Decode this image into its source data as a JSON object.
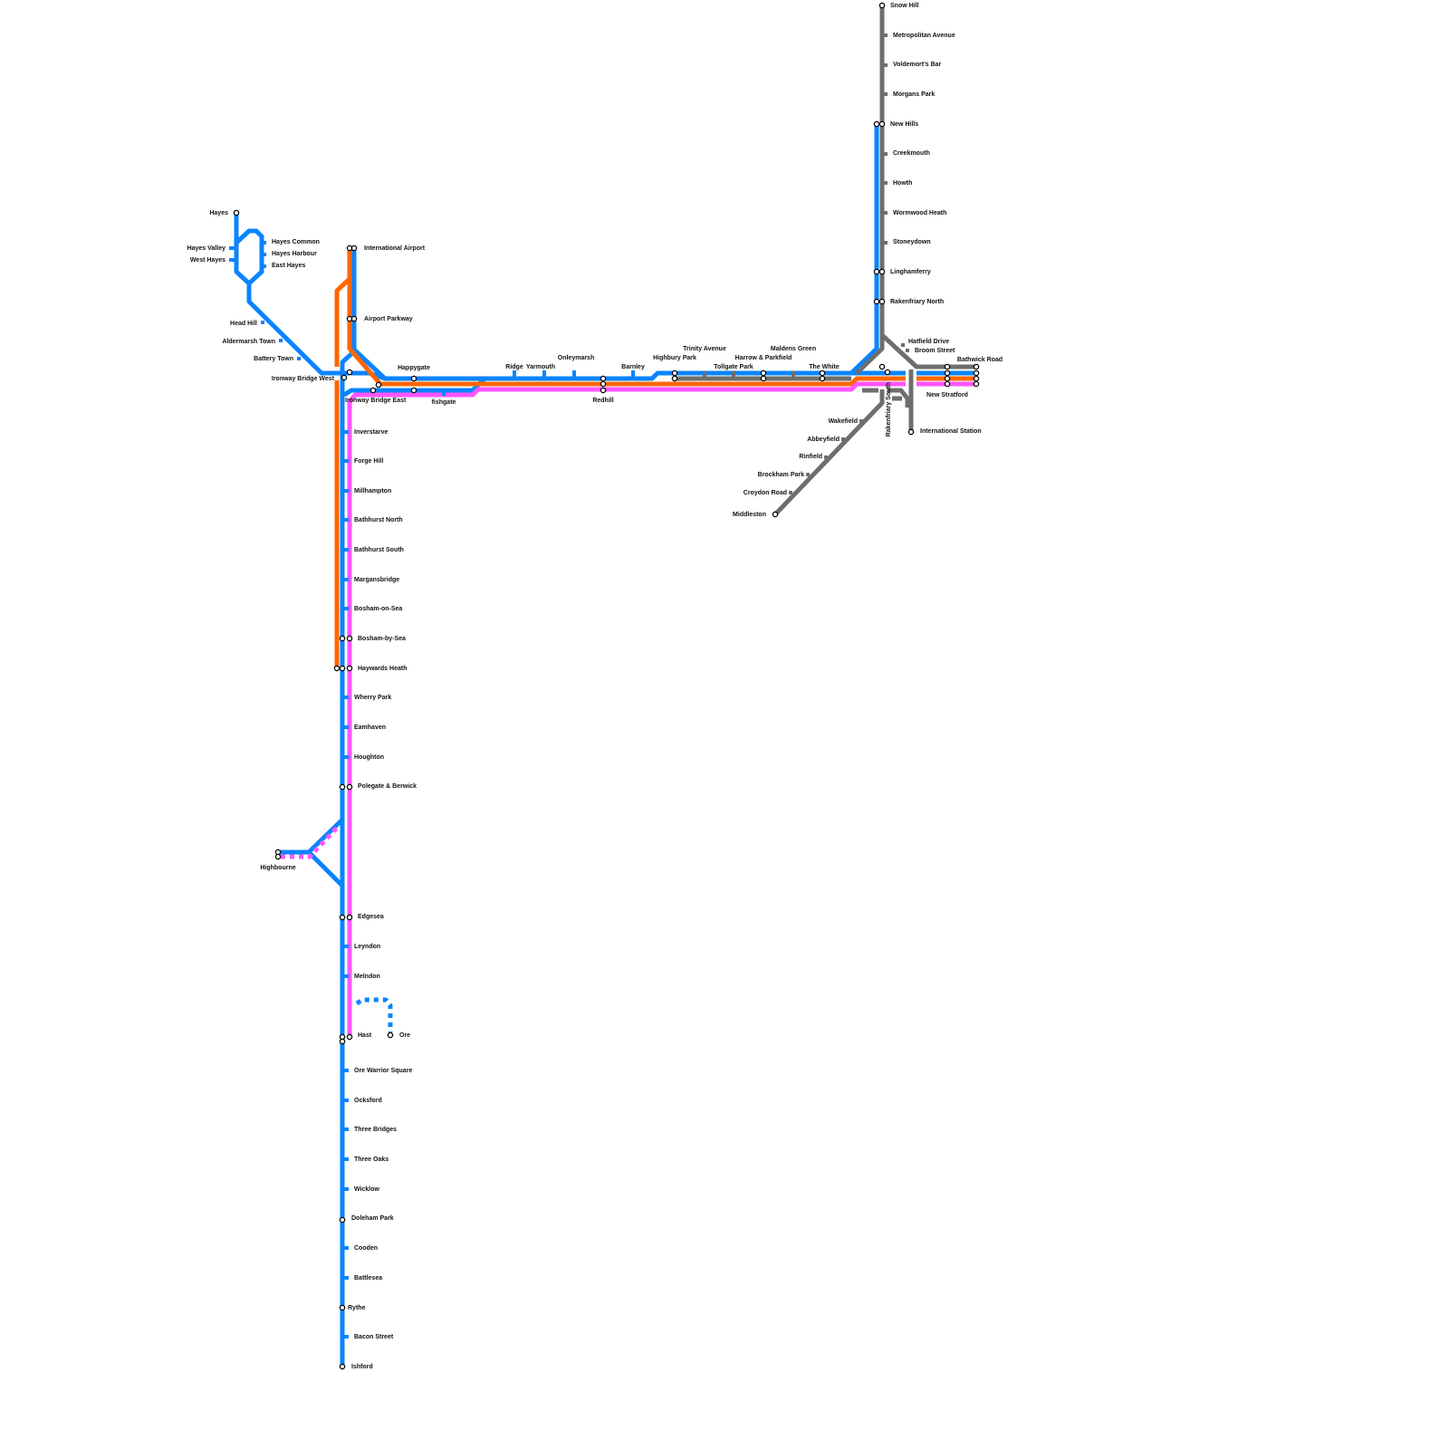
{
  "line_colors": {
    "blue": "#0a84ff",
    "orange": "#ff6600",
    "magenta": "#ff55ff",
    "grey": "#6e6e6e"
  },
  "stations": [
    "Hayes",
    "Hayes Common",
    "Hayes Harbour",
    "East Hayes",
    "Hayes Valley",
    "West Hayes",
    "Head Hill",
    "Aldermarsh Town",
    "Battery Town",
    "International Airport",
    "Airport Parkway",
    "Ironway Bridge West",
    "Ironway Bridge East",
    "Happygate",
    "fishgate",
    "Ridge",
    "Yarmouth",
    "Onleymarsh",
    "Redhill",
    "Barnley",
    "Highbury Park",
    "Trinity Avenue",
    "Tollgate Park",
    "Harrow & Parkfield",
    "Maldens Green",
    "The White",
    "Snow Hill",
    "Metropolitan Avenue",
    "Voldemort's Bar",
    "Morgans Park",
    "New Hills",
    "Creekmouth",
    "Howth",
    "Wormwood Heath",
    "Stoneydown",
    "Linghamferry",
    "Rakenfriary North",
    "Hatfield Drive",
    "Broom Street",
    "Bathwick Road",
    "New Stratford",
    "Rakenfriary South",
    "International Station",
    "Wakefield",
    "Abbeyfield",
    "Rinfield",
    "Brockham Park",
    "Croydon Road",
    "Middleston",
    "Inverstarve",
    "Forge Hill",
    "Millhampton",
    "Bathhurst North",
    "Bathhurst South",
    "Margansbridge",
    "Bosham-on-Sea",
    "Bosham-by-Sea",
    "Haywards Heath",
    "Wherry Park",
    "Eamhaven",
    "Houghton",
    "Polegate & Berwick",
    "Highbourne",
    "Edgesea",
    "Leyndon",
    "Melndon",
    "Hast",
    "Ore",
    "Ore Warrior Square",
    "Ocksford",
    "Three Bridges",
    "Three Oaks",
    "Wicklow",
    "Doleham Park",
    "Cooden",
    "Battlesea",
    "Rythe",
    "Bacon Street",
    "Ishford"
  ]
}
